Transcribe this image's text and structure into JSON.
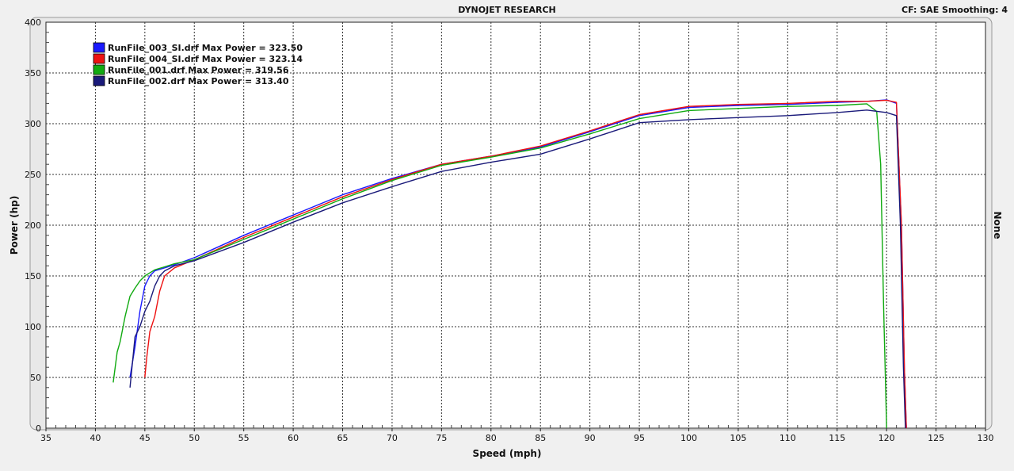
{
  "header": {
    "title": "DYNOJET RESEARCH",
    "correction": "CF: SAE  Smoothing: 4"
  },
  "right_axis_label": "None",
  "chart_data": {
    "type": "line",
    "xlabel": "Speed (mph)",
    "ylabel": "Power (hp)",
    "xlim": [
      35,
      130
    ],
    "ylim": [
      0,
      400
    ],
    "x_ticks": [
      35,
      40,
      45,
      50,
      55,
      60,
      65,
      70,
      75,
      80,
      85,
      90,
      95,
      100,
      105,
      110,
      115,
      120,
      125,
      130
    ],
    "y_ticks": [
      0,
      50,
      100,
      150,
      200,
      250,
      300,
      350,
      400
    ],
    "x_minor_step": 1,
    "y_minor_step": 10,
    "grid": true,
    "legend_position": "top-left",
    "series": [
      {
        "name": "RunFile_003_SI.drf Max Power = 323.50",
        "color": "#1a1aff",
        "x": [
          43.5,
          44.0,
          44.5,
          45.0,
          45.5,
          46.0,
          47,
          48,
          50,
          55,
          60,
          65,
          70,
          75,
          80,
          85,
          90,
          95,
          100,
          105,
          110,
          115,
          118,
          120,
          121.0,
          121.5,
          121.8,
          122.0
        ],
        "y": [
          50,
          80,
          115,
          140,
          150,
          155,
          158,
          161,
          168,
          190,
          210,
          230,
          246,
          260,
          268,
          277,
          292,
          308,
          316,
          318,
          319,
          321,
          322,
          323.5,
          320,
          200,
          60,
          0
        ]
      },
      {
        "name": "RunFile_004_SI.drf Max Power = 323.14",
        "color": "#ee1111",
        "x": [
          45.0,
          45.2,
          45.5,
          46.0,
          46.5,
          47,
          48,
          50,
          55,
          60,
          65,
          70,
          75,
          80,
          85,
          90,
          95,
          100,
          105,
          110,
          115,
          118,
          120,
          121.0,
          121.5,
          121.8,
          122.0
        ],
        "y": [
          50,
          70,
          95,
          110,
          135,
          150,
          158,
          166,
          188,
          208,
          228,
          245,
          260,
          268,
          278,
          293,
          309,
          317,
          319,
          320,
          322,
          322,
          323.1,
          321,
          200,
          60,
          0
        ]
      },
      {
        "name": "RunFile_001.drf Max Power = 319.56",
        "color": "#11aa11",
        "x": [
          41.8,
          42.2,
          42.5,
          43.0,
          43.5,
          44.0,
          44.5,
          45,
          46,
          47,
          48,
          50,
          55,
          60,
          65,
          70,
          75,
          80,
          85,
          90,
          95,
          100,
          105,
          110,
          115,
          118,
          119.0,
          119.4,
          119.7,
          120.0
        ],
        "y": [
          45,
          75,
          85,
          110,
          130,
          138,
          145,
          150,
          156,
          159,
          162,
          166,
          186,
          206,
          226,
          244,
          259,
          267,
          276,
          290,
          305,
          313,
          315,
          317,
          318,
          319.6,
          312,
          260,
          120,
          0
        ]
      },
      {
        "name": "RunFile_002.drf Max Power = 313.40",
        "color": "#1a1a7a",
        "x": [
          43.5,
          44.0,
          44.5,
          45.0,
          45.5,
          46.0,
          46.5,
          47,
          48,
          50,
          55,
          60,
          65,
          70,
          75,
          80,
          85,
          90,
          95,
          100,
          105,
          110,
          115,
          118,
          120,
          121.0,
          121.4,
          121.7,
          121.9
        ],
        "y": [
          40,
          90,
          100,
          115,
          125,
          140,
          150,
          155,
          160,
          165,
          183,
          203,
          222,
          238,
          253,
          262,
          270,
          285,
          301,
          304,
          306,
          308,
          311,
          313.4,
          311,
          308,
          200,
          60,
          0
        ]
      }
    ]
  }
}
